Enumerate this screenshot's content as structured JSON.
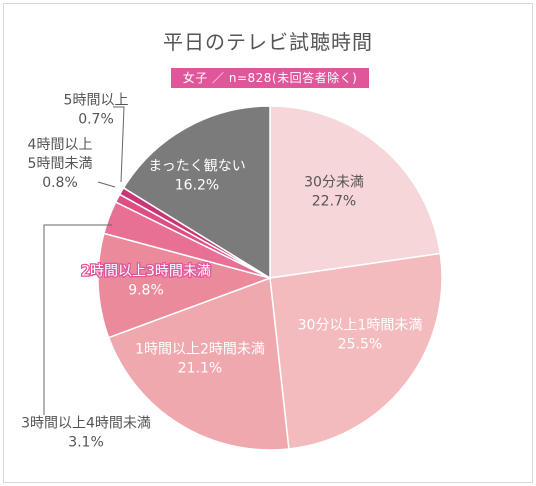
{
  "header": {
    "title": "平日のテレビ試聴時間",
    "subtitle": "女子 ／ n=828(未回答者除く)"
  },
  "chart_data": {
    "type": "pie",
    "title": "平日のテレビ試聴時間",
    "subtitle": "女子 ／ n=828(未回答者除く)",
    "unit": "%",
    "slices": [
      {
        "label": "30分未満",
        "value": 22.7,
        "display": "22.7%",
        "color": "#f6d6d8",
        "text_color": "#555555"
      },
      {
        "label": "30分以上1時間未満",
        "value": 25.5,
        "display": "25.5%",
        "color": "#f3bbbe",
        "text_color": "#ffffff"
      },
      {
        "label": "1時間以上2時間未満",
        "value": 21.1,
        "display": "21.1%",
        "color": "#f0a8af",
        "text_color": "#ffffff"
      },
      {
        "label": "2時間以上3時間未満",
        "value": 9.8,
        "display": "9.8%",
        "color": "#ea8a9b",
        "text_color": "#ffffff"
      },
      {
        "label": "3時間以上4時間未満",
        "value": 3.1,
        "display": "3.1%",
        "color": "#e87094",
        "text_color": "#555555"
      },
      {
        "label": "4時間以上\n5時間未満",
        "value": 0.8,
        "display": "0.8%",
        "color": "#dd4f84",
        "text_color": "#555555"
      },
      {
        "label": "5時間以上",
        "value": 0.7,
        "display": "0.7%",
        "color": "#c93575",
        "text_color": "#555555"
      },
      {
        "label": "まったく観ない",
        "value": 16.2,
        "display": "16.2%",
        "color": "#7b7b7b",
        "text_color": "#ffffff"
      }
    ]
  }
}
